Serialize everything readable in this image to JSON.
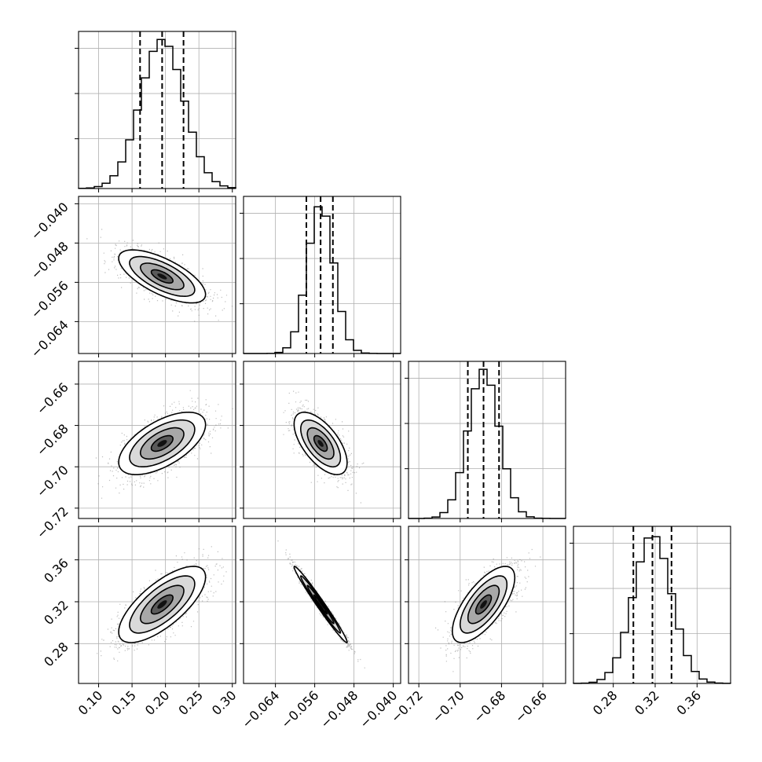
{
  "chart_data": {
    "type": "corner",
    "parameters": [
      {
        "index": 0,
        "mean": 0.195,
        "q16": 0.162,
        "q50": 0.195,
        "q84": 0.227,
        "range": [
          0.07,
          0.305
        ],
        "ticks": [
          "0.10",
          "0.15",
          "0.20",
          "0.25",
          "0.30"
        ],
        "tick_values": [
          0.1,
          0.15,
          0.2,
          0.25,
          0.3
        ]
      },
      {
        "index": 1,
        "mean": -0.0548,
        "q16": -0.0577,
        "q50": -0.0548,
        "q84": -0.0523,
        "range": [
          -0.0705,
          -0.0385
        ],
        "ticks": [
          "−0.064",
          "−0.056",
          "−0.048",
          "−0.040"
        ],
        "tick_values": [
          -0.064,
          -0.056,
          -0.048,
          -0.04
        ]
      },
      {
        "index": 2,
        "mean": -0.6887,
        "q16": -0.6963,
        "q50": -0.6887,
        "q84": -0.6812,
        "range": [
          -0.725,
          -0.649
        ],
        "ticks": [
          "−0.72",
          "−0.70",
          "−0.68",
          "−0.66"
        ],
        "tick_values": [
          -0.72,
          -0.7,
          -0.68,
          -0.66
        ]
      },
      {
        "index": 3,
        "mean": 0.3174,
        "q16": 0.2992,
        "q50": 0.3174,
        "q84": 0.3356,
        "range": [
          0.242,
          0.392
        ],
        "ticks": [
          "0.28",
          "0.32",
          "0.36"
        ],
        "tick_values": [
          0.28,
          0.32,
          0.36
        ]
      }
    ],
    "correlations": [
      {
        "x": 0,
        "y": 1,
        "rho": -0.68
      },
      {
        "x": 0,
        "y": 2,
        "rho": 0.6
      },
      {
        "x": 1,
        "y": 2,
        "rho": -0.62
      },
      {
        "x": 0,
        "y": 3,
        "rho": 0.72
      },
      {
        "x": 1,
        "y": 3,
        "rho": -0.985
      },
      {
        "x": 2,
        "y": 3,
        "rho": 0.7
      }
    ],
    "histogram_bins": 20,
    "quantiles": [
      0.16,
      0.5,
      0.84
    ],
    "contour_levels": [
      "0.5-sigma",
      "1-sigma",
      "1.5-sigma",
      "2-sigma"
    ],
    "grid": true,
    "colors": {
      "line": "#000000",
      "grid": "#b0b0b0",
      "points": "#6e6e6e"
    }
  }
}
